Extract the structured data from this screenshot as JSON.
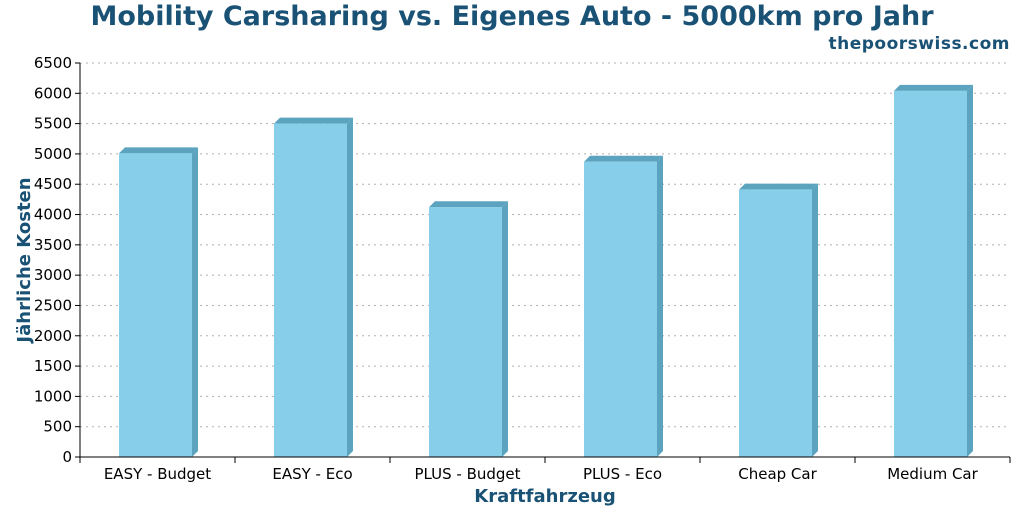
{
  "header": {
    "title": "Mobility Carsharing vs. Eigenes Auto - 5000km pro Jahr",
    "site": "thepoorswiss.com"
  },
  "chart_data": {
    "type": "bar",
    "categories": [
      "EASY - Budget",
      "EASY - Eco",
      "PLUS - Budget",
      "PLUS - Eco",
      "Cheap Car",
      "Medium Car"
    ],
    "values": [
      5010,
      5500,
      4120,
      4870,
      4410,
      6040
    ],
    "xlabel": "Kraftfahrzeug",
    "ylabel": "Jährliche Kosten",
    "ylim": [
      0,
      6500
    ],
    "yticks": [
      0,
      500,
      1000,
      1500,
      2000,
      2500,
      3000,
      3500,
      4000,
      4500,
      5000,
      5500,
      6000,
      6500
    ],
    "grid": true,
    "legend": "none",
    "colors": {
      "bar": "#87ceeb",
      "bar_side": "#5ba3bf",
      "title": "#1a5276",
      "grid": "#b0b0b0"
    }
  }
}
